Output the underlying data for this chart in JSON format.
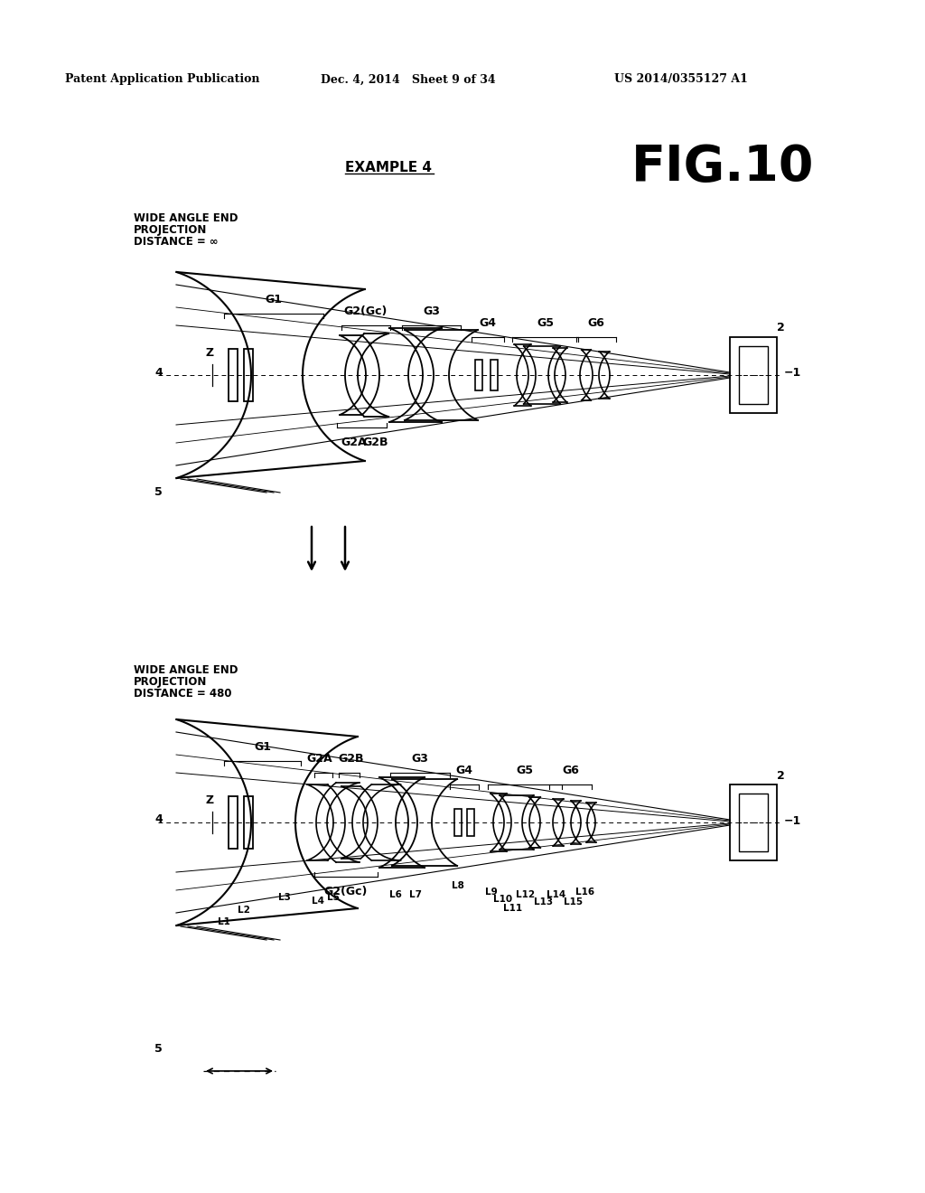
{
  "title": "FIG.10",
  "example_label": "EXAMPLE 4",
  "header_left": "Patent Application Publication",
  "header_center": "Dec. 4, 2014   Sheet 9 of 34",
  "header_right": "US 2014/0355127 A1",
  "bg_color": "#ffffff"
}
